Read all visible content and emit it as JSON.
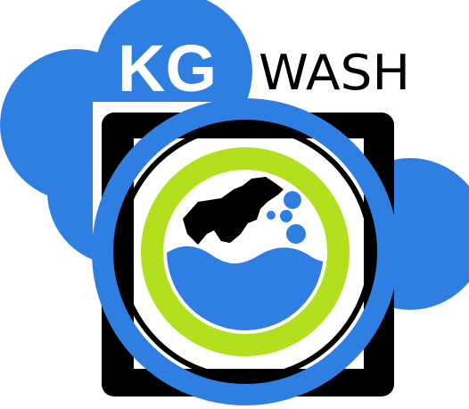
{
  "logo": {
    "brand_primary": "KG",
    "brand_secondary": "WASH"
  },
  "colors": {
    "brand_blue": "#2f7fe3",
    "lime_green": "#b3e01c",
    "black": "#000000",
    "white": "#ffffff"
  },
  "icons": [
    "cloud-shape",
    "washing-machine-icon",
    "shirt-icon",
    "water-wave-icon",
    "bubble-icon"
  ]
}
